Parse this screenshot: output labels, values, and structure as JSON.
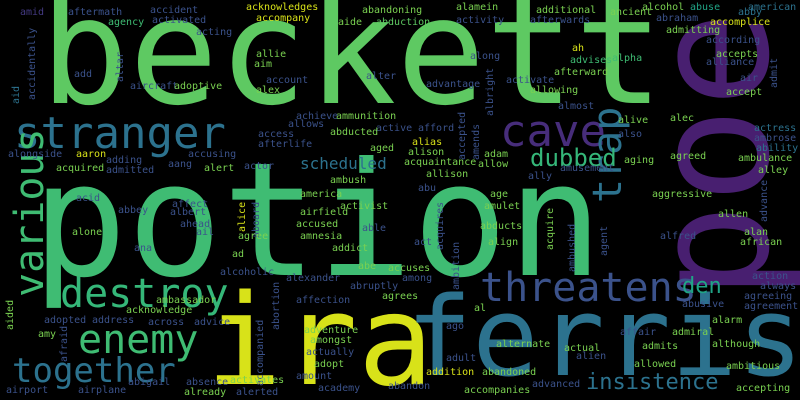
{
  "background": "#000000",
  "words": [
    {
      "text": "beckett",
      "color": "#5ec962"
    },
    {
      "text": "potion",
      "color": "#3fbc73"
    },
    {
      "text": "poe",
      "color": "#481f70"
    },
    {
      "text": "ira",
      "color": "#d8e219"
    },
    {
      "text": "ferris",
      "color": "#2c728e"
    },
    {
      "text": "stranger",
      "color": "#2c728e"
    },
    {
      "text": "cave",
      "color": "#472d7b"
    },
    {
      "text": "various",
      "color": "#3fbc73"
    },
    {
      "text": "trap",
      "color": "#2c728e"
    },
    {
      "text": "destroy",
      "color": "#35b779"
    },
    {
      "text": "threatens",
      "color": "#3b528b"
    },
    {
      "text": "enemy",
      "color": "#3fbc73"
    },
    {
      "text": "together",
      "color": "#2c728e"
    },
    {
      "text": "dubbed",
      "color": "#35b779"
    },
    {
      "text": "insistence",
      "color": "#2c728e"
    },
    {
      "text": "den",
      "color": "#20a486"
    },
    {
      "text": "scheduled",
      "color": "#2c728e"
    },
    {
      "text": "amid",
      "color": "#443a83"
    },
    {
      "text": "aftermath",
      "color": "#3b528b"
    },
    {
      "text": "accident",
      "color": "#3b528b"
    },
    {
      "text": "acknowledges",
      "color": "#d8e219"
    },
    {
      "text": "abandoning",
      "color": "#7ad151"
    },
    {
      "text": "alamein",
      "color": "#7ad151"
    },
    {
      "text": "additional",
      "color": "#7ad151"
    },
    {
      "text": "alcohol",
      "color": "#7ad151"
    },
    {
      "text": "abuse",
      "color": "#20a486"
    },
    {
      "text": "american",
      "color": "#2c728e"
    },
    {
      "text": "agency",
      "color": "#3fbc73"
    },
    {
      "text": "activated",
      "color": "#3b528b"
    },
    {
      "text": "accompany",
      "color": "#d8e219"
    },
    {
      "text": "aide",
      "color": "#7ad151"
    },
    {
      "text": "abduction",
      "color": "#5ec962"
    },
    {
      "text": "activity",
      "color": "#3b528b"
    },
    {
      "text": "afterwards",
      "color": "#3b528b"
    },
    {
      "text": "ancient",
      "color": "#7ad151"
    },
    {
      "text": "abraham",
      "color": "#3b528b"
    },
    {
      "text": "abby",
      "color": "#2c728e"
    },
    {
      "text": "accomplice",
      "color": "#d8e219"
    },
    {
      "text": "admitting",
      "color": "#7ad151"
    },
    {
      "text": "acting",
      "color": "#3b528b"
    },
    {
      "text": "according",
      "color": "#3b528b"
    },
    {
      "text": "accidentally",
      "color": "#3b528b"
    },
    {
      "text": "ah",
      "color": "#d8e219"
    },
    {
      "text": "accepts",
      "color": "#7ad151"
    },
    {
      "text": "alliance",
      "color": "#3b528b"
    },
    {
      "text": "allie",
      "color": "#7ad151"
    },
    {
      "text": "along",
      "color": "#3b528b"
    },
    {
      "text": "advises",
      "color": "#3fbc73"
    },
    {
      "text": "alpha",
      "color": "#3fbc73"
    },
    {
      "text": "admit",
      "color": "#3b528b"
    },
    {
      "text": "add",
      "color": "#3b528b"
    },
    {
      "text": "altar",
      "color": "#3b528b"
    },
    {
      "text": "aim",
      "color": "#7ad151"
    },
    {
      "text": "alter",
      "color": "#3b528b"
    },
    {
      "text": "albright",
      "color": "#3b528b"
    },
    {
      "text": "afterward",
      "color": "#7ad151"
    },
    {
      "text": "activate",
      "color": "#3b528b"
    },
    {
      "text": "air",
      "color": "#3b528b"
    },
    {
      "text": "account",
      "color": "#3b528b"
    },
    {
      "text": "advantage",
      "color": "#3b528b"
    },
    {
      "text": "allowing",
      "color": "#7ad151"
    },
    {
      "text": "accept",
      "color": "#7ad151"
    },
    {
      "text": "aid",
      "color": "#2c728e"
    },
    {
      "text": "aircraft",
      "color": "#3b528b"
    },
    {
      "text": "adoptive",
      "color": "#7ad151"
    },
    {
      "text": "alex",
      "color": "#7ad151"
    },
    {
      "text": "almost",
      "color": "#3b528b"
    },
    {
      "text": "achieve",
      "color": "#3b528b"
    },
    {
      "text": "ammunition",
      "color": "#7ad151"
    },
    {
      "text": "alive",
      "color": "#7ad151"
    },
    {
      "text": "alec",
      "color": "#7ad151"
    },
    {
      "text": "actress",
      "color": "#2c728e"
    },
    {
      "text": "allows",
      "color": "#3b528b"
    },
    {
      "text": "active",
      "color": "#3b528b"
    },
    {
      "text": "afford",
      "color": "#3b528b"
    },
    {
      "text": "accepted",
      "color": "#3b528b"
    },
    {
      "text": "amends",
      "color": "#3b528b"
    },
    {
      "text": "also",
      "color": "#3b528b"
    },
    {
      "text": "ambrose",
      "color": "#3b528b"
    },
    {
      "text": "access",
      "color": "#3b528b"
    },
    {
      "text": "abducted",
      "color": "#7ad151"
    },
    {
      "text": "alias",
      "color": "#d8e219"
    },
    {
      "text": "ability",
      "color": "#2c728e"
    },
    {
      "text": "alongside",
      "color": "#3b528b"
    },
    {
      "text": "aaron",
      "color": "#d8e219"
    },
    {
      "text": "afterlife",
      "color": "#3b528b"
    },
    {
      "text": "aged",
      "color": "#7ad151"
    },
    {
      "text": "alison",
      "color": "#7ad151"
    },
    {
      "text": "adam",
      "color": "#7ad151"
    },
    {
      "text": "aging",
      "color": "#7ad151"
    },
    {
      "text": "agreed",
      "color": "#7ad151"
    },
    {
      "text": "ambulance",
      "color": "#7ad151"
    },
    {
      "text": "alley",
      "color": "#7ad151"
    },
    {
      "text": "adding",
      "color": "#3b528b"
    },
    {
      "text": "accusing",
      "color": "#3b528b"
    },
    {
      "text": "acquaintance",
      "color": "#7ad151"
    },
    {
      "text": "allow",
      "color": "#7ad151"
    },
    {
      "text": "acquired",
      "color": "#7ad151"
    },
    {
      "text": "aang",
      "color": "#3b528b"
    },
    {
      "text": "alert",
      "color": "#7ad151"
    },
    {
      "text": "actor",
      "color": "#3b528b"
    },
    {
      "text": "admitted",
      "color": "#3b528b"
    },
    {
      "text": "allison",
      "color": "#7ad151"
    },
    {
      "text": "ally",
      "color": "#3b528b"
    },
    {
      "text": "amusement",
      "color": "#3b528b"
    },
    {
      "text": "ambush",
      "color": "#7ad151"
    },
    {
      "text": "abu",
      "color": "#3b528b"
    },
    {
      "text": "age",
      "color": "#7ad151"
    },
    {
      "text": "advance",
      "color": "#3b528b"
    },
    {
      "text": "acid",
      "color": "#3b528b"
    },
    {
      "text": "affect",
      "color": "#3b528b"
    },
    {
      "text": "america",
      "color": "#7ad151"
    },
    {
      "text": "activist",
      "color": "#7ad151"
    },
    {
      "text": "aggressive",
      "color": "#7ad151"
    },
    {
      "text": "abbey",
      "color": "#3b528b"
    },
    {
      "text": "albert",
      "color": "#3b528b"
    },
    {
      "text": "alice",
      "color": "#d8e219"
    },
    {
      "text": "aboard",
      "color": "#3b528b"
    },
    {
      "text": "airfield",
      "color": "#7ad151"
    },
    {
      "text": "acquires",
      "color": "#3b528b"
    },
    {
      "text": "amulet",
      "color": "#7ad151"
    },
    {
      "text": "allen",
      "color": "#7ad151"
    },
    {
      "text": "ahead",
      "color": "#3b528b"
    },
    {
      "text": "accused",
      "color": "#7ad151"
    },
    {
      "text": "able",
      "color": "#3b528b"
    },
    {
      "text": "abducts",
      "color": "#7ad151"
    },
    {
      "text": "acquire",
      "color": "#7ad151"
    },
    {
      "text": "alone",
      "color": "#7ad151"
    },
    {
      "text": "ail",
      "color": "#3b528b"
    },
    {
      "text": "agree",
      "color": "#7ad151"
    },
    {
      "text": "amnesia",
      "color": "#7ad151"
    },
    {
      "text": "act",
      "color": "#3b528b"
    },
    {
      "text": "align",
      "color": "#7ad151"
    },
    {
      "text": "agent",
      "color": "#3b528b"
    },
    {
      "text": "ambushed",
      "color": "#3b528b"
    },
    {
      "text": "alfred",
      "color": "#3b528b"
    },
    {
      "text": "alan",
      "color": "#7ad151"
    },
    {
      "text": "ana",
      "color": "#3b528b"
    },
    {
      "text": "ad",
      "color": "#7ad151"
    },
    {
      "text": "addict",
      "color": "#7ad151"
    },
    {
      "text": "ambition",
      "color": "#3b528b"
    },
    {
      "text": "african",
      "color": "#7ad151"
    },
    {
      "text": "abe",
      "color": "#7ad151"
    },
    {
      "text": "accuses",
      "color": "#7ad151"
    },
    {
      "text": "alcoholic",
      "color": "#3b528b"
    },
    {
      "text": "alexander",
      "color": "#3b528b"
    },
    {
      "text": "among",
      "color": "#3b528b"
    },
    {
      "text": "abruptly",
      "color": "#3b528b"
    },
    {
      "text": "ambassador",
      "color": "#7ad151"
    },
    {
      "text": "action",
      "color": "#3b528b"
    },
    {
      "text": "always",
      "color": "#3b528b"
    },
    {
      "text": "agreeing",
      "color": "#3b528b"
    },
    {
      "text": "abortion",
      "color": "#3b528b"
    },
    {
      "text": "affection",
      "color": "#3b528b"
    },
    {
      "text": "agrees",
      "color": "#7ad151"
    },
    {
      "text": "agreement",
      "color": "#3b528b"
    },
    {
      "text": "abusive",
      "color": "#3b528b"
    },
    {
      "text": "aided",
      "color": "#7ad151"
    },
    {
      "text": "acknowledge",
      "color": "#7ad151"
    },
    {
      "text": "al",
      "color": "#7ad151"
    },
    {
      "text": "alarm",
      "color": "#7ad151"
    },
    {
      "text": "adopted",
      "color": "#3b528b"
    },
    {
      "text": "address",
      "color": "#3b528b"
    },
    {
      "text": "across",
      "color": "#3b528b"
    },
    {
      "text": "advice",
      "color": "#3b528b"
    },
    {
      "text": "ago",
      "color": "#3b528b"
    },
    {
      "text": "affair",
      "color": "#3b528b"
    },
    {
      "text": "admiral",
      "color": "#7ad151"
    },
    {
      "text": "amy",
      "color": "#7ad151"
    },
    {
      "text": "afraid",
      "color": "#3b528b"
    },
    {
      "text": "accompanied",
      "color": "#3b528b"
    },
    {
      "text": "adventure",
      "color": "#7ad151"
    },
    {
      "text": "amongst",
      "color": "#7ad151"
    },
    {
      "text": "alternate",
      "color": "#7ad151"
    },
    {
      "text": "actual",
      "color": "#7ad151"
    },
    {
      "text": "admits",
      "color": "#7ad151"
    },
    {
      "text": "although",
      "color": "#7ad151"
    },
    {
      "text": "actually",
      "color": "#3b528b"
    },
    {
      "text": "adopt",
      "color": "#7ad151"
    },
    {
      "text": "adult",
      "color": "#3b528b"
    },
    {
      "text": "alien",
      "color": "#3b528b"
    },
    {
      "text": "allowed",
      "color": "#7ad151"
    },
    {
      "text": "ambitious",
      "color": "#7ad151"
    },
    {
      "text": "abigail",
      "color": "#3b528b"
    },
    {
      "text": "absence",
      "color": "#3b528b"
    },
    {
      "text": "activates",
      "color": "#7ad151"
    },
    {
      "text": "amount",
      "color": "#3b528b"
    },
    {
      "text": "addition",
      "color": "#d8e219"
    },
    {
      "text": "abandoned",
      "color": "#7ad151"
    },
    {
      "text": "airport",
      "color": "#3b528b"
    },
    {
      "text": "airplane",
      "color": "#3b528b"
    },
    {
      "text": "already",
      "color": "#7ad151"
    },
    {
      "text": "alerted",
      "color": "#3b528b"
    },
    {
      "text": "academy",
      "color": "#3b528b"
    },
    {
      "text": "abandon",
      "color": "#3b528b"
    },
    {
      "text": "accompanies",
      "color": "#7ad151"
    },
    {
      "text": "advanced",
      "color": "#3b528b"
    },
    {
      "text": "accepting",
      "color": "#7ad151"
    }
  ]
}
